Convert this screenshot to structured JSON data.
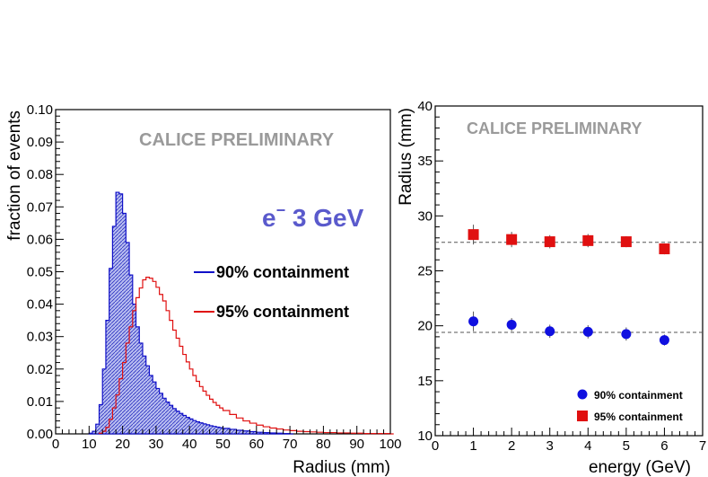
{
  "colors": {
    "series_90": "#1010c8",
    "series_95": "#e01010",
    "fill_90": "#9aa0e6",
    "prelim": "#9a9a9a",
    "energy_label": "#5a5acc",
    "grid_dash": "#555555"
  },
  "chart_data": [
    {
      "type": "histogram",
      "title": "",
      "watermark": "CALICE PRELIMINARY",
      "label_main": "e",
      "label_sup": "−",
      "label_rest": " 3 GeV",
      "xlabel": "Radius (mm)",
      "ylabel": "fraction of events",
      "xlim": [
        0,
        100
      ],
      "ylim": [
        0,
        0.1
      ],
      "x_ticks": [
        0,
        10,
        20,
        30,
        40,
        50,
        60,
        70,
        80,
        90,
        100
      ],
      "x_tick_labels": [
        "0",
        "10",
        "20",
        "30",
        "40",
        "50",
        "60",
        "70",
        "80",
        "90",
        "100"
      ],
      "y_ticks": [
        0,
        0.01,
        0.02,
        0.03,
        0.04,
        0.05,
        0.06,
        0.07,
        0.08,
        0.09,
        0.1
      ],
      "y_tick_labels": [
        "0.00",
        "0.01",
        "0.02",
        "0.03",
        "0.04",
        "0.05",
        "0.06",
        "0.07",
        "0.08",
        "0.09",
        "0.10"
      ],
      "bin_width": 1,
      "legend_position": "center-right",
      "series": [
        {
          "name": "90% containment",
          "filled": true,
          "x": [
            10,
            11,
            12,
            13,
            14,
            15,
            16,
            17,
            18,
            19,
            20,
            21,
            22,
            23,
            24,
            25,
            26,
            27,
            28,
            29,
            30,
            31,
            32,
            33,
            34,
            35,
            36,
            37,
            38,
            39,
            40,
            41,
            42,
            43,
            44,
            45,
            46,
            47,
            48,
            49,
            50,
            52,
            54,
            56,
            58,
            60,
            62,
            64,
            66,
            68,
            70
          ],
          "values": [
            0.0002,
            0.0008,
            0.003,
            0.009,
            0.02,
            0.035,
            0.051,
            0.064,
            0.0745,
            0.074,
            0.068,
            0.059,
            0.049,
            0.04,
            0.033,
            0.028,
            0.024,
            0.021,
            0.018,
            0.016,
            0.014,
            0.0125,
            0.011,
            0.0098,
            0.0088,
            0.0078,
            0.007,
            0.0063,
            0.0057,
            0.0051,
            0.0046,
            0.0041,
            0.0037,
            0.0034,
            0.0031,
            0.0028,
            0.0025,
            0.0023,
            0.0021,
            0.0019,
            0.0017,
            0.0014,
            0.0011,
            0.0009,
            0.0007,
            0.0005,
            0.0004,
            0.0003,
            0.0002,
            0.0001,
            0.0
          ]
        },
        {
          "name": "95% containment",
          "filled": false,
          "x": [
            13,
            14,
            15,
            16,
            17,
            18,
            19,
            20,
            21,
            22,
            23,
            24,
            25,
            26,
            27,
            28,
            29,
            30,
            31,
            32,
            33,
            34,
            35,
            36,
            37,
            38,
            39,
            40,
            41,
            42,
            43,
            44,
            45,
            46,
            47,
            48,
            49,
            50,
            52,
            54,
            56,
            58,
            60,
            62,
            64,
            66,
            68,
            70,
            72,
            74,
            76,
            78,
            80,
            84,
            88,
            92,
            96,
            100
          ],
          "values": [
            0.0002,
            0.0008,
            0.002,
            0.0045,
            0.008,
            0.012,
            0.017,
            0.022,
            0.028,
            0.033,
            0.038,
            0.042,
            0.045,
            0.0475,
            0.0483,
            0.048,
            0.047,
            0.0452,
            0.043,
            0.041,
            0.038,
            0.035,
            0.032,
            0.0295,
            0.027,
            0.0245,
            0.0222,
            0.02,
            0.018,
            0.0162,
            0.0146,
            0.0132,
            0.0119,
            0.0107,
            0.0097,
            0.0088,
            0.008,
            0.0072,
            0.006,
            0.0049,
            0.004,
            0.0033,
            0.0027,
            0.0022,
            0.0018,
            0.0015,
            0.0012,
            0.001,
            0.0008,
            0.0007,
            0.0006,
            0.0005,
            0.0004,
            0.0003,
            0.0002,
            0.0001,
            0.0001,
            0.0
          ]
        }
      ]
    },
    {
      "type": "scatter",
      "title": "",
      "watermark": "CALICE PRELIMINARY",
      "xlabel": "energy (GeV)",
      "ylabel": "Radius (mm)",
      "xlim": [
        0,
        7
      ],
      "ylim": [
        10,
        40
      ],
      "x_ticks": [
        0,
        1,
        2,
        3,
        4,
        5,
        6,
        7
      ],
      "x_tick_labels": [
        "0",
        "1",
        "2",
        "3",
        "4",
        "5",
        "6",
        "7"
      ],
      "y_ticks": [
        10,
        15,
        20,
        25,
        30,
        35,
        40
      ],
      "y_tick_labels": [
        "10",
        "15",
        "20",
        "25",
        "30",
        "35",
        "40"
      ],
      "legend_position": "bottom-right",
      "reference_lines": [
        {
          "name": "90% mean",
          "y": 19.4
        },
        {
          "name": "95% mean",
          "y": 27.6
        }
      ],
      "series": [
        {
          "name": "90% containment",
          "marker": "circle",
          "x": [
            1,
            2,
            3,
            4,
            5,
            6
          ],
          "y": [
            20.4,
            20.1,
            19.5,
            19.45,
            19.25,
            18.7
          ],
          "err": [
            0.9,
            0.6,
            0.6,
            0.6,
            0.6,
            0.5
          ]
        },
        {
          "name": "95% containment",
          "marker": "square",
          "x": [
            1,
            2,
            3,
            4,
            5,
            6
          ],
          "y": [
            28.3,
            27.85,
            27.65,
            27.75,
            27.65,
            27.0
          ],
          "err": [
            0.9,
            0.7,
            0.6,
            0.6,
            0.5,
            0.5
          ]
        }
      ]
    }
  ]
}
